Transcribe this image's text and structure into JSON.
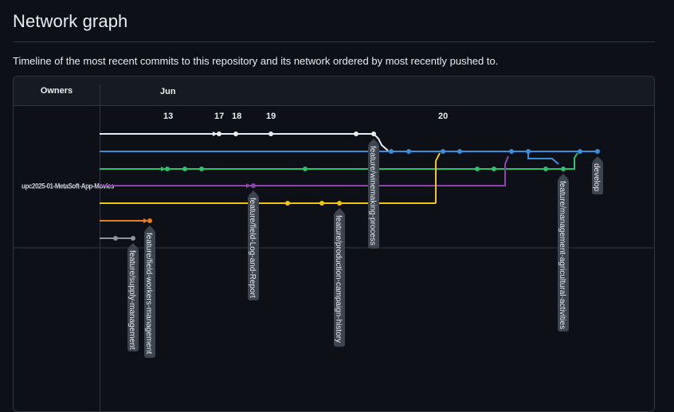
{
  "page": {
    "title": "Network graph",
    "description": "Timeline of the most recent commits to this repository and its network ordered by most recently pushed to."
  },
  "graph": {
    "owners_header": "Owners",
    "month": "Jun",
    "owner": "upc2025-01-MetaSoft-App-Movies",
    "dates": [
      "13",
      "17",
      "18",
      "19",
      "20"
    ],
    "colors": {
      "white": "#e6edf3",
      "blue": "#3b8eda",
      "green": "#2fbf71",
      "purple": "#8e44ad",
      "yellow": "#f1c40f",
      "orange": "#e67e22",
      "gray": "#8b949e"
    },
    "branches": [
      {
        "name": "feature/winemaking-process",
        "color": "white"
      },
      {
        "name": "develop",
        "color": "blue"
      },
      {
        "name": "feature/management-agricultural-activities",
        "color": "green"
      },
      {
        "name": "feature/field-Log-and-Report",
        "color": "purple"
      },
      {
        "name": "feature/production-campaign-history",
        "color": "yellow"
      },
      {
        "name": "feature/field-workers-management",
        "color": "orange"
      },
      {
        "name": "feature/supply-management",
        "color": "gray"
      }
    ]
  }
}
